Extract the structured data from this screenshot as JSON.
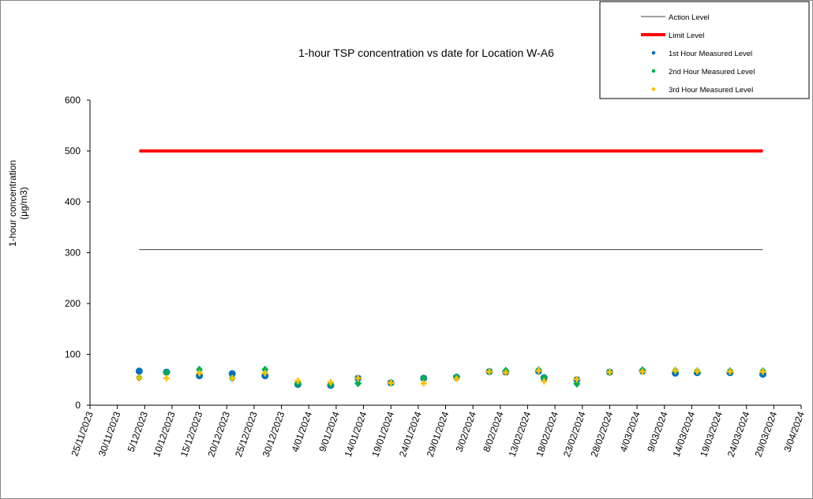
{
  "chart_data": {
    "type": "scatter",
    "title": "1-hour TSP concentration vs date for Location  W-A6",
    "ylabel_line1": "1-hour concentration",
    "ylabel_line2": "(μg/m3)",
    "xlabel": "",
    "ylim": [
      0,
      600
    ],
    "yticks": [
      0,
      100,
      200,
      300,
      400,
      500,
      600
    ],
    "xlim": [
      "25/11/2023",
      "3/04/2024"
    ],
    "xticks": [
      "25/11/2023",
      "30/11/2023",
      "5/12/2023",
      "10/12/2023",
      "15/12/2023",
      "20/12/2023",
      "25/12/2023",
      "30/12/2023",
      "4/01/2024",
      "9/01/2024",
      "14/01/2024",
      "19/01/2024",
      "24/01/2024",
      "29/01/2024",
      "3/02/2024",
      "8/02/2024",
      "13/02/2024",
      "18/02/2024",
      "23/02/2024",
      "28/02/2024",
      "4/03/2024",
      "9/03/2024",
      "14/03/2024",
      "19/03/2024",
      "24/03/2024",
      "29/03/2024",
      "3/04/2024"
    ],
    "grid": false,
    "legend_position": "top-right",
    "lines": [
      {
        "name": "Action Level",
        "value": 306,
        "from": "4/12/2023",
        "to": "27/03/2024",
        "color": "#404040"
      },
      {
        "name": "Limit Level",
        "value": 500,
        "from": "4/12/2023",
        "to": "27/03/2024",
        "color": "#ff0000"
      }
    ],
    "x": [
      "4/12/2023",
      "9/12/2023",
      "15/12/2023",
      "21/12/2023",
      "27/12/2023",
      "2/01/2024",
      "8/01/2024",
      "13/01/2024",
      "19/01/2024",
      "25/01/2024",
      "31/01/2024",
      "6/02/2024",
      "9/02/2024",
      "15/02/2024",
      "16/02/2024",
      "22/02/2024",
      "28/02/2024",
      "5/03/2024",
      "11/03/2024",
      "15/03/2024",
      "21/03/2024",
      "27/03/2024"
    ],
    "series": [
      {
        "name": "1st Hour Measured Level",
        "color": "#0070c0",
        "values": [
          67,
          65,
          58,
          62,
          58,
          41,
          39,
          53,
          44,
          53,
          55,
          66,
          65,
          67,
          54,
          50,
          65,
          67,
          63,
          64,
          64,
          61
        ]
      },
      {
        "name": "2nd Hour Measured Level",
        "color": "#00b050",
        "values": [
          54,
          64,
          70,
          53,
          70,
          43,
          41,
          43,
          44,
          53,
          55,
          66,
          68,
          69,
          54,
          42,
          65,
          69,
          68,
          67,
          67,
          67
        ]
      },
      {
        "name": "3rd Hour Measured Level",
        "color": "#ffc000",
        "values": [
          54,
          53,
          63,
          53,
          63,
          48,
          45,
          53,
          44,
          43,
          52,
          66,
          64,
          68,
          47,
          51,
          65,
          66,
          68,
          67,
          66,
          66
        ]
      }
    ]
  }
}
